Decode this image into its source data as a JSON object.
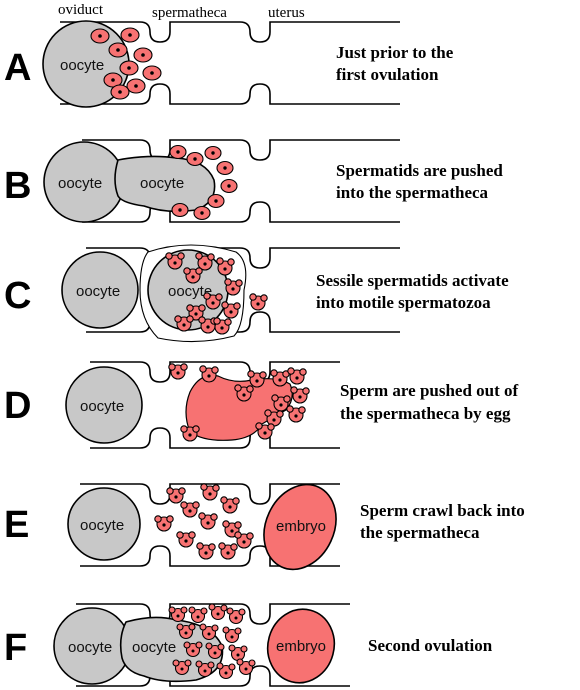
{
  "headers": {
    "oviduct": "oviduct",
    "spermatheca": "spermatheca",
    "uterus": "uterus"
  },
  "panels": [
    {
      "letter": "A",
      "caption_line1": "Just prior to the",
      "caption_line2": "first ovulation",
      "oocyte": "oocyte"
    },
    {
      "letter": "B",
      "caption_line1": "Spermatids are pushed",
      "caption_line2": "into the spermatheca",
      "oocyte": "oocyte",
      "oocyte2": "oocyte"
    },
    {
      "letter": "C",
      "caption_line1": "Sessile spermatids activate",
      "caption_line2": "into motile spermatozoa",
      "oocyte": "oocyte",
      "oocyte2": "oocyte"
    },
    {
      "letter": "D",
      "caption_line1": "Sperm are pushed out of",
      "caption_line2": "the spermatheca by egg",
      "oocyte": "oocyte"
    },
    {
      "letter": "E",
      "caption_line1": "Sperm crawl back into",
      "caption_line2": "the spermatheca",
      "oocyte": "oocyte",
      "embryo": "embryo"
    },
    {
      "letter": "F",
      "caption_line1": "Second ovulation",
      "caption_line2": "",
      "oocyte": "oocyte",
      "oocyte2": "oocyte",
      "embryo": "embryo"
    }
  ],
  "colors": {
    "sperm": "#f77272",
    "oocyte": "#c8c8c8",
    "outline": "#000000"
  }
}
